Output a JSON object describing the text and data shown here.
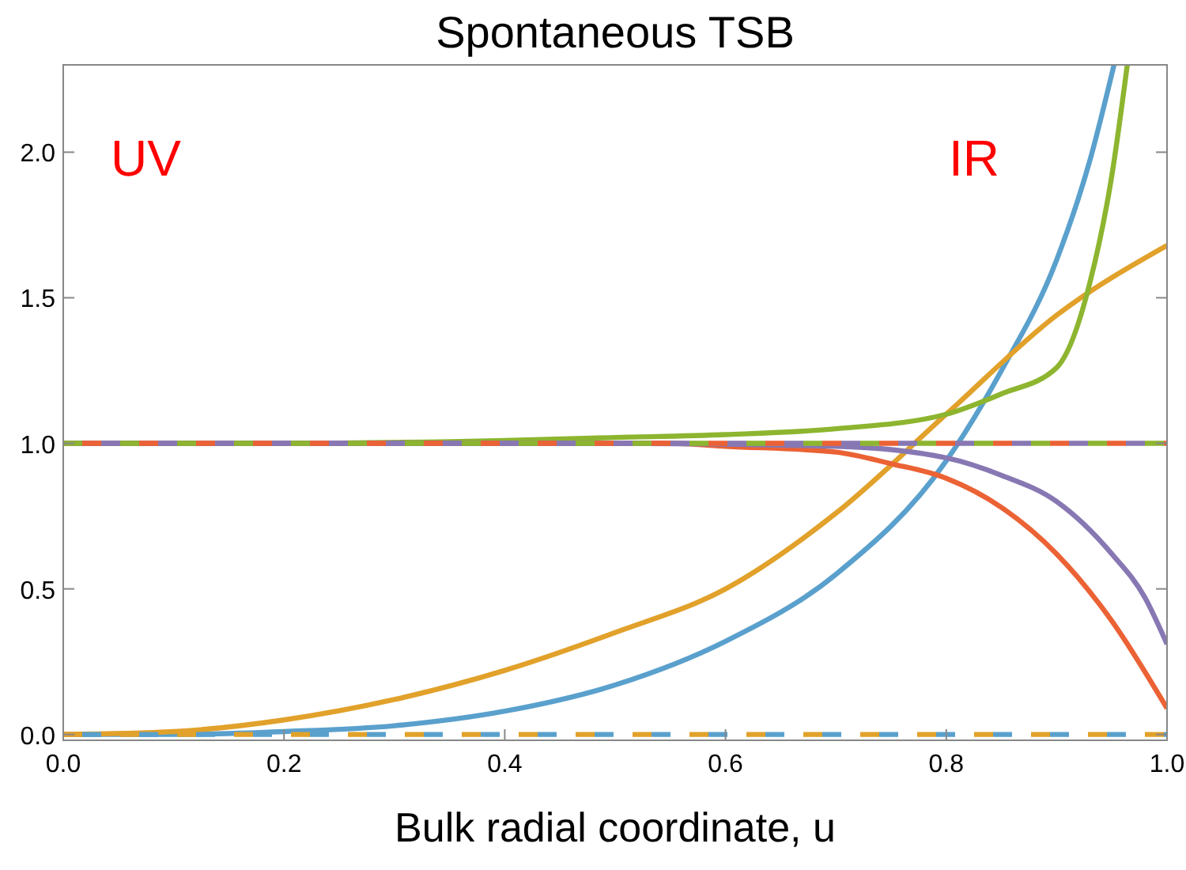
{
  "chart_data": {
    "type": "line",
    "title": "Spontaneous TSB",
    "xlabel": "Bulk radial coordinate, u",
    "xlim": [
      0,
      1
    ],
    "ylim": [
      -0.02,
      2.3
    ],
    "xticks": [
      {
        "value": 0,
        "label": "0.0"
      },
      {
        "value": 0.2,
        "label": "0.2"
      },
      {
        "value": 0.4,
        "label": "0.4"
      },
      {
        "value": 0.6,
        "label": "0.6"
      },
      {
        "value": 0.8,
        "label": "0.8"
      },
      {
        "value": 1,
        "label": "1.0"
      }
    ],
    "yticks": [
      {
        "value": 0,
        "label": "0.0"
      },
      {
        "value": 0.5,
        "label": "0.5"
      },
      {
        "value": 1,
        "label": "1.0"
      },
      {
        "value": 1.5,
        "label": "1.5"
      },
      {
        "value": 2,
        "label": "2.0"
      }
    ],
    "grid": false,
    "annotations": [
      "UV",
      "IR"
    ],
    "series": [
      {
        "color": "#5aa0cd",
        "line_style": "solid",
        "x": [
          0,
          0.1,
          0.2,
          0.3,
          0.4,
          0.5,
          0.6,
          0.7,
          0.8,
          0.85,
          0.9,
          0.93,
          0.952
        ],
        "values": [
          0,
          0,
          0.01,
          0.03,
          0.08,
          0.17,
          0.32,
          0.55,
          0.94,
          1.25,
          1.63,
          1.97,
          2.3
        ]
      },
      {
        "color": "#e1a12a",
        "line_style": "solid",
        "x": [
          0,
          0.1,
          0.2,
          0.3,
          0.4,
          0.5,
          0.6,
          0.7,
          0.8,
          0.9,
          1
        ],
        "values": [
          0,
          0.01,
          0.05,
          0.12,
          0.22,
          0.35,
          0.5,
          0.76,
          1.1,
          1.44,
          1.68
        ]
      },
      {
        "color": "#8db52f",
        "line_style": "solid",
        "x": [
          0,
          0.2,
          0.4,
          0.5,
          0.6,
          0.7,
          0.8,
          0.85,
          0.9,
          0.93,
          0.95,
          0.964
        ],
        "values": [
          1,
          1,
          1.01,
          1.02,
          1.03,
          1.05,
          1.1,
          1.17,
          1.26,
          1.55,
          1.92,
          2.3
        ]
      },
      {
        "color": "#eb6235",
        "line_style": "solid",
        "x": [
          0,
          0.4,
          0.55,
          0.6,
          0.7,
          0.75,
          0.8,
          0.85,
          0.9,
          0.95,
          1
        ],
        "values": [
          1,
          1,
          1,
          0.99,
          0.97,
          0.93,
          0.88,
          0.78,
          0.62,
          0.39,
          0.09
        ]
      },
      {
        "color": "#8778b3",
        "line_style": "solid",
        "x": [
          0,
          0.5,
          0.7,
          0.8,
          0.85,
          0.9,
          0.95,
          0.98,
          1
        ],
        "values": [
          1,
          1,
          0.99,
          0.95,
          0.89,
          0.8,
          0.62,
          0.47,
          0.31
        ]
      },
      {
        "color": "#8db52f",
        "line_style": "dashed",
        "x": [
          0,
          1
        ],
        "values": [
          1,
          1
        ]
      },
      {
        "color": "#eb6235",
        "line_style": "dashed",
        "x": [
          0,
          1
        ],
        "values": [
          1,
          1
        ]
      },
      {
        "color": "#8778b3",
        "line_style": "dashed",
        "x": [
          0,
          1
        ],
        "values": [
          1,
          1
        ]
      },
      {
        "color": "#e1a12a",
        "line_style": "dashed",
        "x": [
          0,
          1
        ],
        "values": [
          0,
          0
        ]
      },
      {
        "color": "#5aa0cd",
        "line_style": "dashed",
        "x": [
          0,
          1
        ],
        "values": [
          0,
          0
        ]
      }
    ]
  }
}
